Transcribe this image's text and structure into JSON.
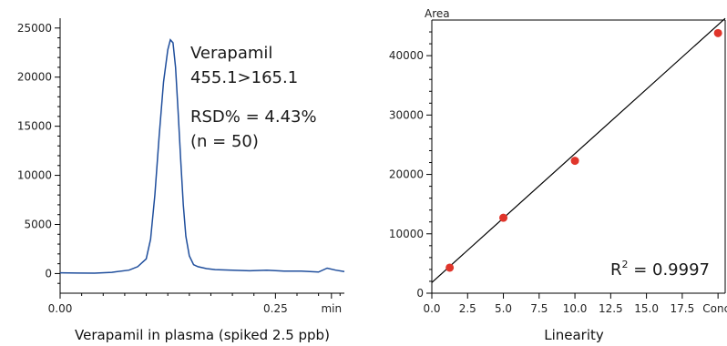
{
  "colors": {
    "trace": "#1f4e9c",
    "point": "#e0352b",
    "fit_line": "#000000",
    "axis": "#000000"
  },
  "chart_data": [
    {
      "type": "line",
      "caption": "Verapamil in plasma (spiked 2.5 ppb)",
      "xlim": [
        0.0,
        0.33
      ],
      "ylim": [
        -2000,
        26000
      ],
      "x_ticks": [
        {
          "value": 0.0,
          "label": "0.00"
        },
        {
          "value": 0.25,
          "label": "0.25"
        },
        {
          "value": 0.315,
          "label": "min"
        }
      ],
      "y_ticks": [
        0,
        5000,
        10000,
        15000,
        20000,
        25000
      ],
      "annotations": [
        "Verapamil",
        "455.1>165.1",
        "RSD% = 4.43%",
        "(n = 50)"
      ],
      "x": [
        0.0,
        0.02,
        0.04,
        0.06,
        0.08,
        0.09,
        0.1,
        0.105,
        0.11,
        0.115,
        0.12,
        0.125,
        0.128,
        0.131,
        0.134,
        0.137,
        0.14,
        0.143,
        0.146,
        0.15,
        0.155,
        0.16,
        0.17,
        0.18,
        0.2,
        0.22,
        0.24,
        0.26,
        0.28,
        0.3,
        0.31,
        0.32,
        0.33
      ],
      "y": [
        80,
        50,
        40,
        120,
        350,
        700,
        1500,
        3500,
        8000,
        14000,
        19500,
        22800,
        23800,
        23500,
        21000,
        16500,
        11500,
        7000,
        3800,
        1800,
        900,
        700,
        500,
        400,
        350,
        280,
        350,
        250,
        250,
        150,
        550,
        350,
        200
      ]
    },
    {
      "type": "scatter",
      "caption": "Linearity",
      "ylabel": "Area",
      "xlabel": "Conc.",
      "xlim": [
        0,
        20.5
      ],
      "ylim": [
        0,
        46000
      ],
      "x_ticks": [
        {
          "value": 0,
          "label": "0.0"
        },
        {
          "value": 2.5,
          "label": "2.5"
        },
        {
          "value": 5,
          "label": "5.0"
        },
        {
          "value": 7.5,
          "label": "7.5"
        },
        {
          "value": 10,
          "label": "10.0"
        },
        {
          "value": 12.5,
          "label": "12.5"
        },
        {
          "value": 15,
          "label": "15.0"
        },
        {
          "value": 17.5,
          "label": "17.5"
        },
        {
          "value": 20,
          "label": "Conc."
        }
      ],
      "y_ticks": [
        0,
        10000,
        20000,
        30000,
        40000
      ],
      "points": {
        "x": [
          1.25,
          5,
          10,
          20
        ],
        "y": [
          4300,
          12700,
          22300,
          43800
        ]
      },
      "fit": {
        "slope": 2170,
        "intercept": 1800
      },
      "r2_prefix": "R",
      "r2_exp": "2",
      "r2_value": " = 0.9997"
    }
  ]
}
